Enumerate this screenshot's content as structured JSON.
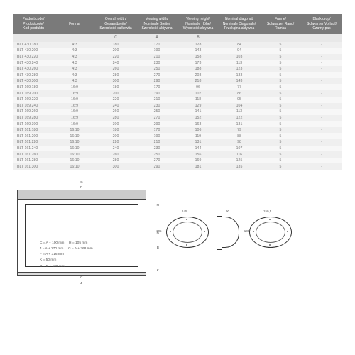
{
  "table": {
    "headers": [
      "Product code/\nProduktcode/\nKod produktu",
      "Format",
      "Overall width/\nGesamtbreite/\nSzerokość całkowita",
      "Viewing width/\nNominale Breite/\nSzerokość aktywna",
      "Viewing height/\nNominale Höhe/\nWysokość aktywna",
      "Nominal diagonal/\nNominale Diagonale/\nPrzekątna aktywna",
      "Frame/\nSchwarzer Rand/\nRamka",
      "Black drop/\nSchwarzer Vorlauf/\nCzarny pas"
    ],
    "subheader": [
      "",
      "",
      "C",
      "A",
      "B",
      "",
      "",
      ""
    ],
    "rows": [
      [
        "BLT 430.180",
        "4:3",
        "180",
        "170",
        "128",
        "84",
        "5",
        "-"
      ],
      [
        "BLT 430.200",
        "4:3",
        "200",
        "190",
        "143",
        "94",
        "5",
        "-"
      ],
      [
        "BLT 430.220",
        "4:3",
        "220",
        "210",
        "158",
        "103",
        "5",
        "-"
      ],
      [
        "BLT 430.240",
        "4:3",
        "240",
        "230",
        "173",
        "113",
        "5",
        "-"
      ],
      [
        "BLT 430.260",
        "4:3",
        "260",
        "250",
        "188",
        "123",
        "5",
        "-"
      ],
      [
        "BLT 430.280",
        "4:3",
        "280",
        "270",
        "203",
        "133",
        "5",
        "-"
      ],
      [
        "BLT 430.300",
        "4:3",
        "300",
        "290",
        "218",
        "143",
        "5",
        "-"
      ],
      [
        "BLT 169.180",
        "16:9",
        "180",
        "170",
        "96",
        "77",
        "5",
        "-"
      ],
      [
        "BLT 169.200",
        "16:9",
        "200",
        "190",
        "107",
        "86",
        "5",
        "-"
      ],
      [
        "BLT 169.220",
        "16:9",
        "220",
        "210",
        "118",
        "95",
        "5",
        "-"
      ],
      [
        "BLT 169.240",
        "16:9",
        "240",
        "230",
        "129",
        "104",
        "5",
        "-"
      ],
      [
        "BLT 169.260",
        "16:9",
        "260",
        "250",
        "141",
        "113",
        "5",
        "-"
      ],
      [
        "BLT 169.280",
        "16:9",
        "280",
        "270",
        "152",
        "122",
        "5",
        "-"
      ],
      [
        "BLT 169.300",
        "16:9",
        "300",
        "290",
        "163",
        "131",
        "5",
        "-"
      ],
      [
        "BLT 161.180",
        "16:10",
        "180",
        "170",
        "106",
        "79",
        "5",
        "-"
      ],
      [
        "BLT 161.200",
        "16:10",
        "200",
        "190",
        "119",
        "88",
        "5",
        "-"
      ],
      [
        "BLT 161.220",
        "16:10",
        "220",
        "210",
        "131",
        "98",
        "5",
        "-"
      ],
      [
        "BLT 161.240",
        "16:10",
        "240",
        "230",
        "144",
        "107",
        "5",
        "-"
      ],
      [
        "BLT 161.260",
        "16:10",
        "260",
        "250",
        "156",
        "116",
        "5",
        "-"
      ],
      [
        "BLT 161.280",
        "16:10",
        "280",
        "270",
        "169",
        "125",
        "5",
        "-"
      ],
      [
        "BLT 161.300",
        "16:10",
        "300",
        "290",
        "181",
        "135",
        "5",
        "-"
      ]
    ]
  },
  "diagram": {
    "formulas": [
      "C = A + 100 mm     H = 105 mm",
      "J = A + 270 mm     G = A + 368 mm",
      "F = A + 316 mm",
      "K = 50 mm",
      "D = B + 100 mm"
    ],
    "dims": {
      "G": "G",
      "F": "F",
      "C": "C",
      "H": "H",
      "D": "D",
      "B": "B",
      "K": "K",
      "J": "J",
      "oval1_w": "145",
      "oval1_h": "105",
      "bracket_w": "90",
      "bracket_h": "130,5",
      "bracket_d": "90",
      "oval3_w": "150,5"
    }
  },
  "styles": {
    "header_bg": "#7a7a7a",
    "row_odd": "#f7f7f7",
    "row_even": "#efefef"
  }
}
